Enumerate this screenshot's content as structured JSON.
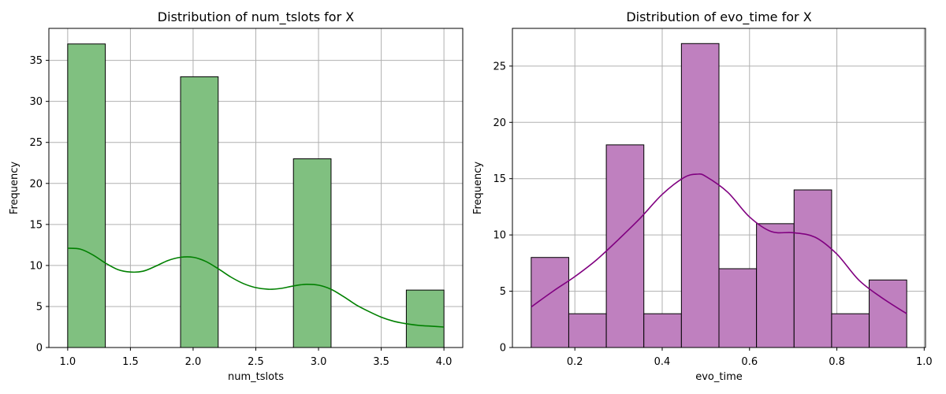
{
  "chart_data": [
    {
      "type": "bar",
      "subtype": "histogram",
      "title": "Distribution of num_tslots for X",
      "xlabel": "num_tslots",
      "ylabel": "Frequency",
      "xlim": [
        0.85,
        4.15
      ],
      "ylim": [
        0,
        38.9
      ],
      "xticks": [
        1.0,
        1.5,
        2.0,
        2.5,
        3.0,
        3.5,
        4.0
      ],
      "xtick_labels": [
        "1.0",
        "1.5",
        "2.0",
        "2.5",
        "3.0",
        "3.5",
        "4.0"
      ],
      "yticks": [
        0,
        5,
        10,
        15,
        20,
        25,
        30,
        35
      ],
      "ytick_labels": [
        "0",
        "5",
        "10",
        "15",
        "20",
        "25",
        "30",
        "35"
      ],
      "bins": [
        {
          "x0": 1.0,
          "x1": 1.3,
          "value": 37
        },
        {
          "x0": 1.3,
          "x1": 1.6,
          "value": 0
        },
        {
          "x0": 1.6,
          "x1": 1.9,
          "value": 0
        },
        {
          "x0": 1.9,
          "x1": 2.2,
          "value": 33
        },
        {
          "x0": 2.2,
          "x1": 2.5,
          "value": 0
        },
        {
          "x0": 2.5,
          "x1": 2.8,
          "value": 0
        },
        {
          "x0": 2.8,
          "x1": 3.1,
          "value": 23
        },
        {
          "x0": 3.1,
          "x1": 3.4,
          "value": 0
        },
        {
          "x0": 3.4,
          "x1": 3.7,
          "value": 0
        },
        {
          "x0": 3.7,
          "x1": 4.0,
          "value": 7
        }
      ],
      "kde": {
        "x": [
          1.0,
          1.1,
          1.2,
          1.3,
          1.4,
          1.5,
          1.6,
          1.7,
          1.8,
          1.9,
          2.0,
          2.1,
          2.2,
          2.3,
          2.4,
          2.5,
          2.6,
          2.7,
          2.8,
          2.9,
          3.0,
          3.1,
          3.2,
          3.3,
          3.4,
          3.5,
          3.6,
          3.7,
          3.8,
          3.9,
          4.0
        ],
        "y": [
          12.1,
          12.0,
          11.3,
          10.3,
          9.5,
          9.2,
          9.3,
          9.9,
          10.6,
          11.0,
          11.0,
          10.5,
          9.6,
          8.6,
          7.8,
          7.3,
          7.1,
          7.2,
          7.5,
          7.7,
          7.6,
          7.1,
          6.2,
          5.2,
          4.4,
          3.7,
          3.2,
          2.9,
          2.7,
          2.6,
          2.5
        ]
      },
      "grid": true,
      "colors": {
        "bar_fill": "#80c080",
        "bar_edge": "#000000",
        "kde": "#008000"
      }
    },
    {
      "type": "bar",
      "subtype": "histogram",
      "title": "Distribution of evo_time for X",
      "xlabel": "evo_time",
      "ylabel": "Frequency",
      "xlim": [
        0.057,
        1.003
      ],
      "ylim": [
        0,
        28.35
      ],
      "xticks": [
        0.2,
        0.4,
        0.6,
        0.8,
        1.0
      ],
      "xtick_labels": [
        "0.2",
        "0.4",
        "0.6",
        "0.8",
        "1.0"
      ],
      "yticks": [
        0,
        5,
        10,
        15,
        20,
        25
      ],
      "ytick_labels": [
        "0",
        "5",
        "10",
        "15",
        "20",
        "25"
      ],
      "bins": [
        {
          "x0": 0.1,
          "x1": 0.186,
          "value": 8
        },
        {
          "x0": 0.186,
          "x1": 0.272,
          "value": 3
        },
        {
          "x0": 0.272,
          "x1": 0.358,
          "value": 18
        },
        {
          "x0": 0.358,
          "x1": 0.444,
          "value": 3
        },
        {
          "x0": 0.444,
          "x1": 0.53,
          "value": 27
        },
        {
          "x0": 0.53,
          "x1": 0.616,
          "value": 7
        },
        {
          "x0": 0.616,
          "x1": 0.702,
          "value": 11
        },
        {
          "x0": 0.702,
          "x1": 0.788,
          "value": 14
        },
        {
          "x0": 0.788,
          "x1": 0.874,
          "value": 3
        },
        {
          "x0": 0.874,
          "x1": 0.96,
          "value": 6
        }
      ],
      "kde": {
        "x": [
          0.1,
          0.15,
          0.2,
          0.25,
          0.3,
          0.35,
          0.4,
          0.45,
          0.48,
          0.5,
          0.55,
          0.6,
          0.65,
          0.7,
          0.75,
          0.8,
          0.85,
          0.9,
          0.96
        ],
        "y": [
          3.6,
          5.0,
          6.3,
          7.8,
          9.6,
          11.5,
          13.6,
          15.1,
          15.4,
          15.2,
          13.8,
          11.6,
          10.3,
          10.2,
          9.8,
          8.3,
          6.0,
          4.5,
          3.0
        ]
      },
      "grid": true,
      "colors": {
        "bar_fill": "#bf80bf",
        "bar_edge": "#000000",
        "kde": "#800080"
      }
    }
  ]
}
